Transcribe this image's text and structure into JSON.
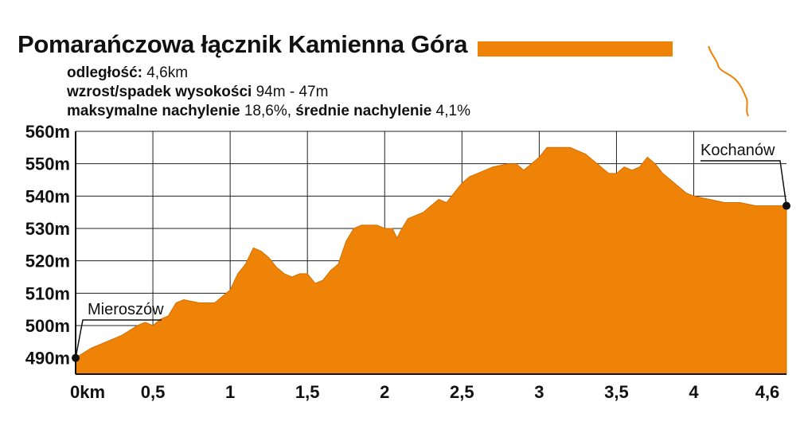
{
  "header": {
    "title": "Pomarańczowa łącznik Kamienna Góra",
    "stats": [
      {
        "label": "odległość:",
        "value": " 4,6km"
      },
      {
        "label": "wzrost/spadek wysokości",
        "value": " 94m - 47m"
      },
      {
        "label": "maksymalne nachylenie",
        "value": " 18,6%, "
      },
      {
        "label": "średnie nachylenie",
        "value": " 4,1%"
      }
    ]
  },
  "colors": {
    "fill": "#ef8307",
    "grid": "#222222",
    "marker": "#111111"
  },
  "chart_data": {
    "type": "area",
    "title": "Pomarańczowa łącznik Kamienna Góra",
    "xlabel": "",
    "ylabel": "",
    "xlim": [
      0,
      4.6
    ],
    "ylim": [
      485,
      560
    ],
    "grid": true,
    "x_ticks": [
      {
        "v": 0,
        "label": "0km"
      },
      {
        "v": 0.5,
        "label": "0,5"
      },
      {
        "v": 1,
        "label": "1"
      },
      {
        "v": 1.5,
        "label": "1,5"
      },
      {
        "v": 2,
        "label": "2"
      },
      {
        "v": 2.5,
        "label": "2,5"
      },
      {
        "v": 3,
        "label": "3"
      },
      {
        "v": 3.5,
        "label": "3,5"
      },
      {
        "v": 4,
        "label": "4"
      },
      {
        "v": 4.6,
        "label": "4,6"
      }
    ],
    "y_ticks": [
      {
        "v": 490,
        "label": "490m"
      },
      {
        "v": 500,
        "label": "500m"
      },
      {
        "v": 510,
        "label": "510m"
      },
      {
        "v": 520,
        "label": "520m"
      },
      {
        "v": 530,
        "label": "530m"
      },
      {
        "v": 540,
        "label": "540m"
      },
      {
        "v": 550,
        "label": "550m"
      },
      {
        "v": 560,
        "label": "560m"
      }
    ],
    "series": [
      {
        "x": [
          0,
          0.1,
          0.2,
          0.3,
          0.4,
          0.45,
          0.5,
          0.55,
          0.6,
          0.65,
          0.7,
          0.8,
          0.9,
          0.95,
          1.0,
          1.05,
          1.1,
          1.15,
          1.2,
          1.25,
          1.3,
          1.35,
          1.4,
          1.45,
          1.5,
          1.55,
          1.6,
          1.65,
          1.7,
          1.75,
          1.8,
          1.85,
          1.9,
          1.95,
          2.0,
          2.05,
          2.08,
          2.1,
          2.15,
          2.2,
          2.25,
          2.3,
          2.35,
          2.4,
          2.45,
          2.5,
          2.55,
          2.6,
          2.7,
          2.8,
          2.85,
          2.9,
          2.95,
          3.0,
          3.05,
          3.1,
          3.15,
          3.2,
          3.25,
          3.3,
          3.35,
          3.4,
          3.45,
          3.5,
          3.55,
          3.6,
          3.65,
          3.7,
          3.75,
          3.8,
          3.85,
          3.9,
          3.95,
          4.0,
          4.1,
          4.2,
          4.3,
          4.4,
          4.5,
          4.6
        ],
        "y": [
          490,
          493,
          495,
          497,
          500,
          501,
          500,
          502,
          503,
          507,
          508,
          507,
          507,
          509,
          511,
          516,
          519,
          524,
          523,
          521,
          518,
          516,
          515,
          516,
          516,
          513,
          514,
          517,
          519,
          526,
          530,
          531,
          531,
          531,
          530,
          530,
          527,
          529,
          533,
          534,
          535,
          537,
          539,
          538,
          541,
          544,
          546,
          547,
          549,
          550,
          550,
          548,
          550,
          552,
          555,
          555,
          555,
          555,
          554,
          553,
          551,
          549,
          547,
          547,
          549,
          548,
          549,
          552,
          550,
          547,
          545,
          543,
          541,
          540,
          539,
          538,
          538,
          537,
          537,
          537
        ]
      }
    ],
    "annotations": [
      {
        "text": "Mieroszów",
        "x": 0,
        "y": 490
      },
      {
        "text": "Kochanów",
        "x": 4.6,
        "y": 537
      }
    ]
  }
}
